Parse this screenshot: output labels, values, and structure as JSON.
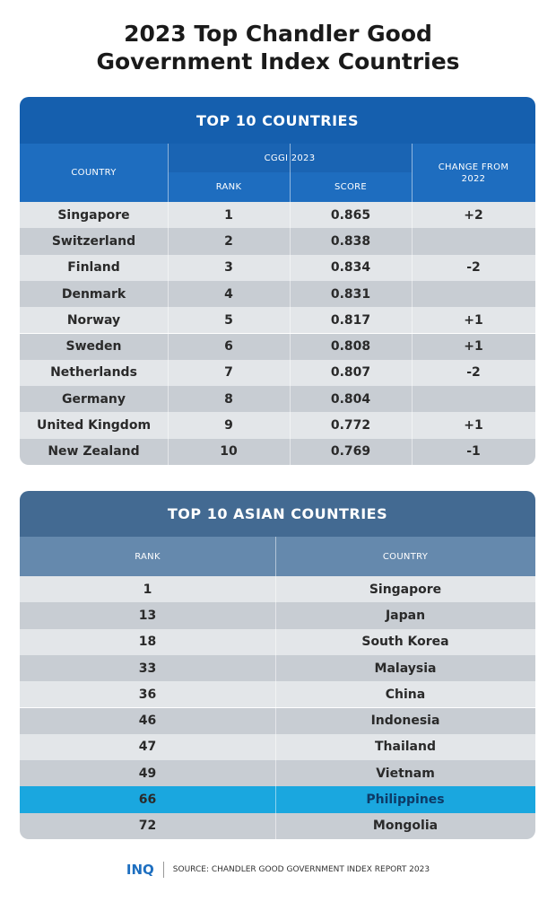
{
  "title_lines": [
    "2023 Top Chandler Good",
    "Government Index Countries"
  ],
  "table1": {
    "title": "TOP 10 COUNTRIES",
    "headers": {
      "country": "COUNTRY",
      "group": "CGGI 2023",
      "rank": "RANK",
      "score": "SCORE",
      "change": "CHANGE FROM 2022"
    },
    "rows": [
      [
        "Singapore",
        "1",
        "0.865",
        "+2"
      ],
      [
        "Switzerland",
        "2",
        "0.838",
        null
      ],
      [
        "Finland",
        "3",
        "0.834",
        "-2"
      ],
      [
        "Denmark",
        "4",
        "0.831",
        null
      ],
      [
        "Norway",
        "5",
        "0.817",
        "+1"
      ],
      [
        "Sweden",
        "6",
        "0.808",
        "+1"
      ],
      [
        "Netherlands",
        "7",
        "0.807",
        "-2"
      ],
      [
        "Germany",
        "8",
        "0.804",
        null
      ],
      [
        "United Kingdom",
        "9",
        "0.772",
        "+1"
      ],
      [
        "New Zealand",
        "10",
        "0.769",
        "-1"
      ]
    ]
  },
  "table2": {
    "title": "TOP 10 ASIAN COUNTRIES",
    "headers": {
      "rank": "RANK",
      "country": "COUNTRY"
    },
    "highlight_row": 8,
    "rows": [
      [
        "1",
        "Singapore"
      ],
      [
        "13",
        "Japan"
      ],
      [
        "18",
        "South Korea"
      ],
      [
        "33",
        "Malaysia"
      ],
      [
        "36",
        "China"
      ],
      [
        "46",
        "Indonesia"
      ],
      [
        "47",
        "Thailand"
      ],
      [
        "49",
        "Vietnam"
      ],
      [
        "66",
        "Philippines"
      ],
      [
        "72",
        "Mongolia"
      ]
    ]
  },
  "footer": {
    "logo": "INQ",
    "source": "SOURCE: CHANDLER GOOD GOVERNMENT INDEX REPORT 2023"
  }
}
